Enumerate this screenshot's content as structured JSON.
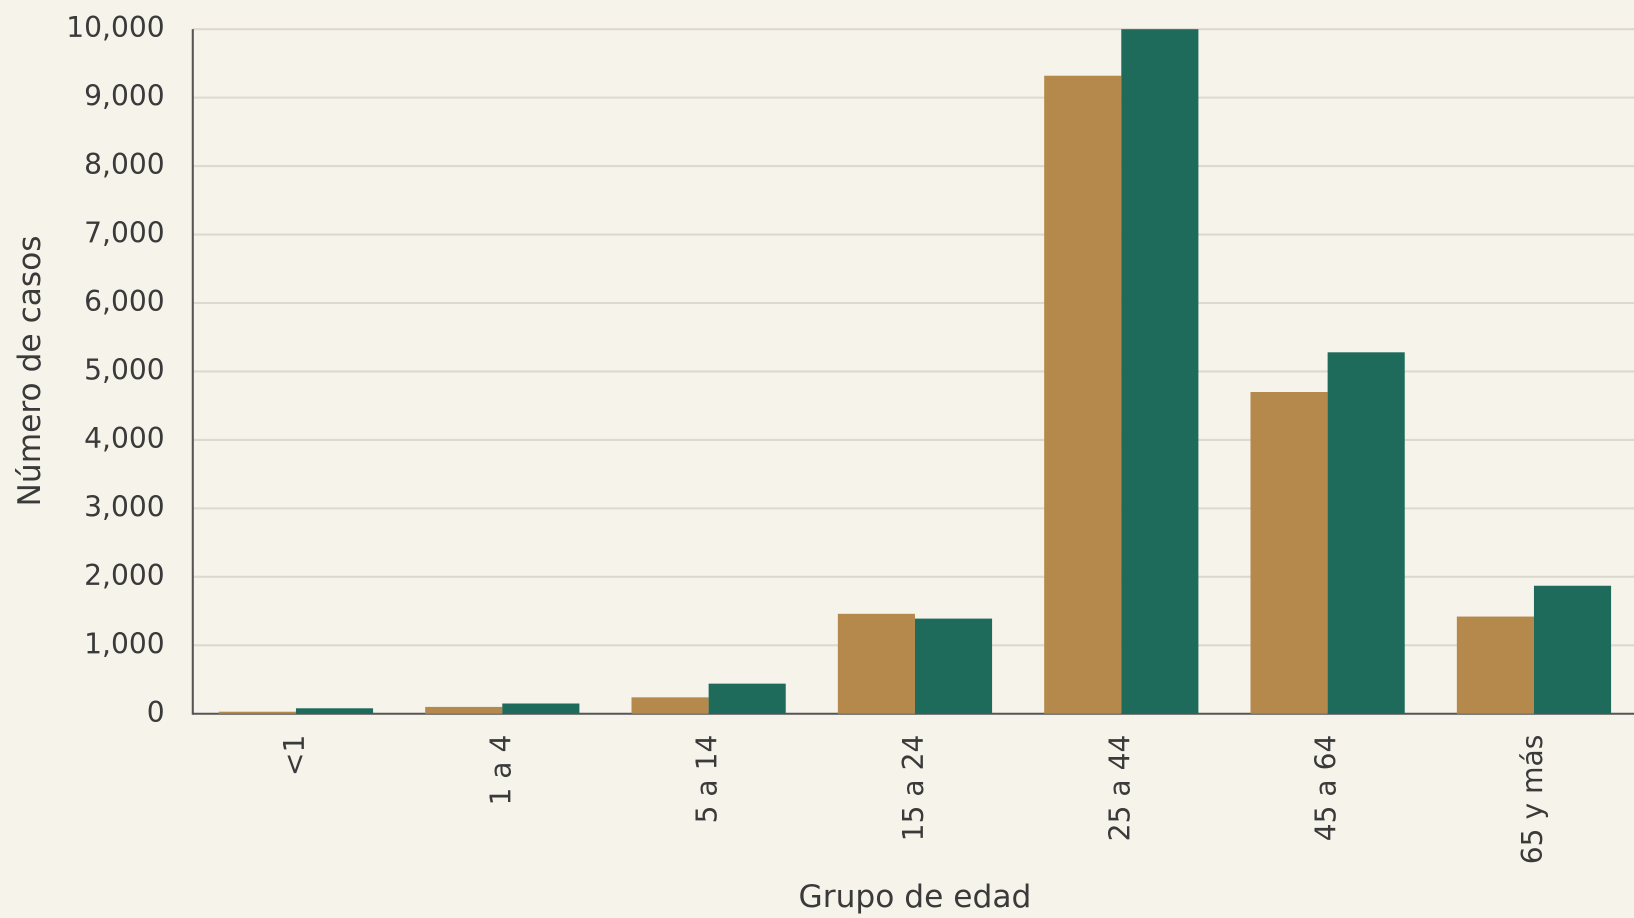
{
  "chart_data": {
    "type": "bar",
    "x_label": "Grupo de edad",
    "y_label": "Número de casos",
    "categories": [
      "<1",
      "1 a 4",
      "5 a 14",
      "15 a 24",
      "25 a 44",
      "45 a 64",
      "65 y más"
    ],
    "series": [
      {
        "color": "#b5894b",
        "values": [
          30,
          100,
          240,
          1460,
          9320,
          4700,
          1420
        ]
      },
      {
        "color": "#1e6b5c",
        "values": [
          80,
          150,
          440,
          1390,
          10000,
          5280,
          1870
        ]
      }
    ],
    "ylim": [
      0,
      10000
    ],
    "yticks": [
      0,
      {
        "value": 1000,
        "label": "1,000"
      },
      {
        "value": 2000,
        "label": "2,000"
      },
      {
        "value": 3000,
        "label": "3,000"
      },
      {
        "value": 4000,
        "label": "4,000"
      },
      {
        "value": 5000,
        "label": "5,000"
      },
      {
        "value": 6000,
        "label": "6,000"
      },
      {
        "value": 7000,
        "label": "7,000"
      },
      {
        "value": 8000,
        "label": "8,000"
      },
      {
        "value": 9000,
        "label": "9,000"
      },
      {
        "value": 10000,
        "label": "10,000"
      }
    ],
    "grid": true
  }
}
